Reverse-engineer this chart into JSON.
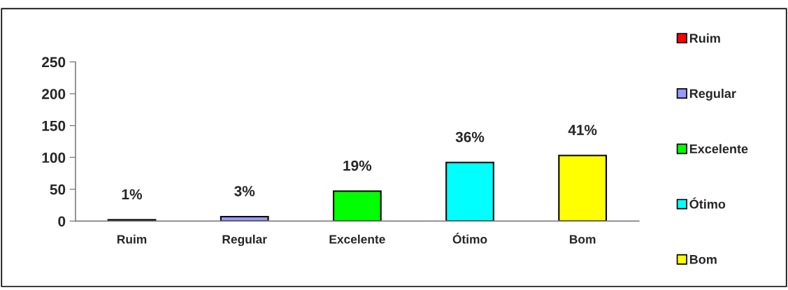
{
  "chart_data": {
    "type": "bar",
    "categories": [
      "Ruim",
      "Regular",
      "Excelente",
      "Ótimo",
      "Bom"
    ],
    "series": [
      {
        "name": "Ruim",
        "color": "#ff0000",
        "values": [
          2,
          null,
          null,
          null,
          null
        ]
      },
      {
        "name": "Regular",
        "color": "#9999ff",
        "values": [
          null,
          7,
          null,
          null,
          null
        ]
      },
      {
        "name": "Excelente",
        "color": "#00ff00",
        "values": [
          null,
          null,
          47,
          null,
          null
        ]
      },
      {
        "name": "Ótimo",
        "color": "#00ffff",
        "values": [
          null,
          null,
          null,
          92,
          null
        ]
      },
      {
        "name": "Bom",
        "color": "#ffff00",
        "values": [
          null,
          null,
          null,
          null,
          103
        ]
      }
    ],
    "annotations": [
      {
        "text": "1%",
        "x": "Ruim",
        "y": 2
      },
      {
        "text": "3%",
        "x": "Regular",
        "y": 7
      },
      {
        "text": "19%",
        "x": "Excelente",
        "y": 47
      },
      {
        "text": "36%",
        "x": "Ótimo",
        "y": 92
      },
      {
        "text": "41%",
        "x": "Bom",
        "y": 103
      }
    ],
    "ylim": [
      0,
      250
    ],
    "yticks": [
      0,
      50,
      100,
      150,
      200,
      250
    ],
    "legend": "right"
  }
}
